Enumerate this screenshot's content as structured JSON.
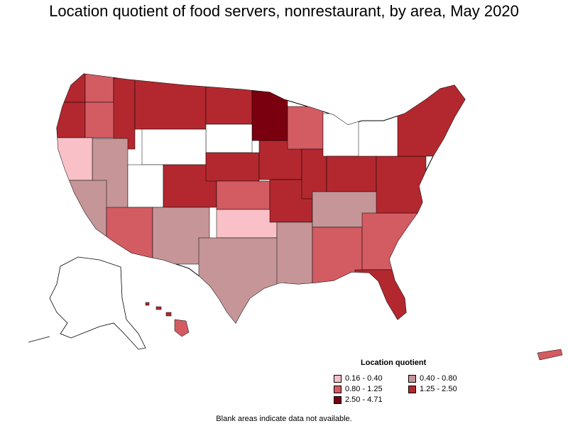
{
  "title": "Location quotient of food servers, nonrestaurant, by area, May 2020",
  "legend": {
    "title": "Location quotient",
    "items": [
      {
        "label": "0.16 - 0.40",
        "color": "#f9c0c8"
      },
      {
        "label": "0.40 - 0.80",
        "color": "#c59598"
      },
      {
        "label": "0.80 - 1.25",
        "color": "#d35b62"
      },
      {
        "label": "1.25 - 2.50",
        "color": "#b3282f"
      },
      {
        "label": "2.50 - 4.71",
        "color": "#7a0010"
      }
    ]
  },
  "footnote": "Blank areas indicate data not available."
}
